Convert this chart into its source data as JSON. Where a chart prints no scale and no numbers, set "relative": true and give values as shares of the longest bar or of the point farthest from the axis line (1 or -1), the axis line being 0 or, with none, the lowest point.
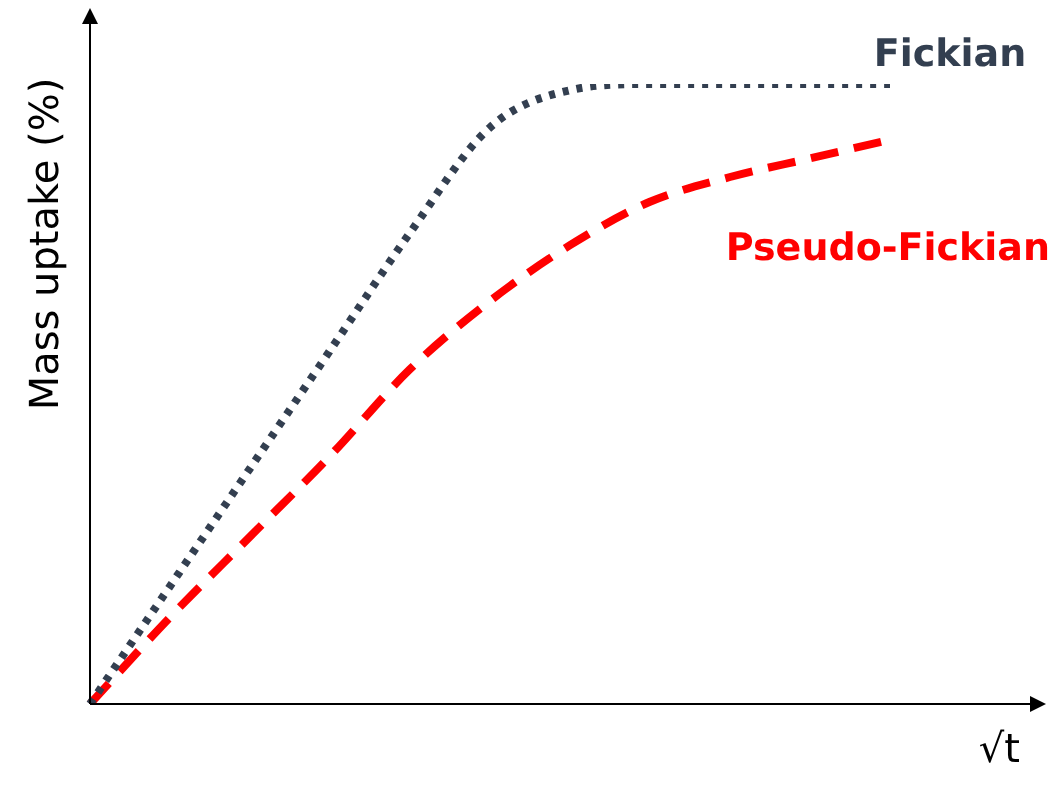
{
  "chart_data": {
    "type": "line",
    "relative": true,
    "xlabel": "√t",
    "ylabel": "Mass uptake (%)",
    "legend": false,
    "marker": "none",
    "tick_labels": false,
    "categories": [
      null,
      null,
      null,
      null,
      null,
      null,
      null,
      null,
      null,
      null,
      null
    ],
    "series": [
      {
        "name": "Fickian",
        "color": "#333f50",
        "line_style": "dotted",
        "values": [
          0,
          0.19,
          0.38,
          0.57,
          0.76,
          0.93,
          0.99,
          1,
          1,
          1,
          1
        ]
      },
      {
        "name": "Pseudo-Fickian",
        "color": "#ff0000",
        "line_style": "dashed",
        "values": [
          0,
          0.14,
          0.27,
          0.4,
          0.54,
          0.65,
          0.74,
          0.81,
          0.85,
          0.88,
          0.91
        ]
      }
    ]
  }
}
